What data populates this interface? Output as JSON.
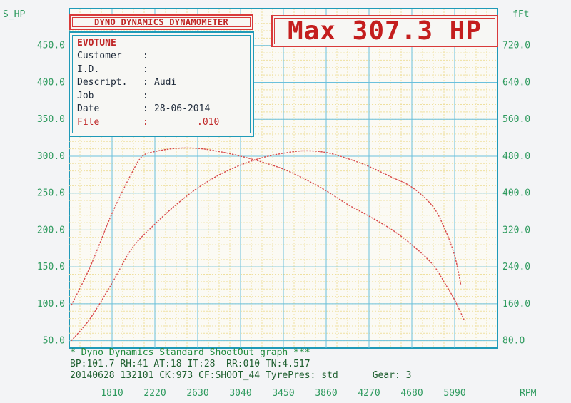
{
  "header": {
    "title": "DYNO DYNAMICS DYNAMOMETER",
    "max_label": "Max 307.3 HP"
  },
  "info": {
    "brand": "EVOTUNE",
    "rows": [
      {
        "label": "Customer",
        "sep": ":",
        "value": ""
      },
      {
        "label": "I.D.",
        "sep": ":",
        "value": ""
      },
      {
        "label": "Descript.",
        "sep": ":",
        "value": "Audi"
      },
      {
        "label": "Job",
        "sep": ":",
        "value": ""
      },
      {
        "label": "Date",
        "sep": ":",
        "value": "28-06-2014"
      }
    ],
    "file_label": "File",
    "file_sep": ":",
    "file_value": ".010"
  },
  "footer": {
    "line1": "* Dyno Dynamics Standard ShootOut graph ***",
    "line2": "BP:101.7 RH:41 AT:18 IT:28  RR:010 TN:4.517",
    "line3_left": "20140628 132101 CK:973 CF:SHOOT_44 TyrePres: std",
    "line3_right": "Gear: 3"
  },
  "chart_data": {
    "type": "line",
    "left_axis_title": "S_HP",
    "right_axis_title": "fFt",
    "x_unit_label": "RPM",
    "x_ticks": [
      "1810",
      "2220",
      "2630",
      "3040",
      "3450",
      "3860",
      "4270",
      "4680",
      "5090"
    ],
    "y_left_ticks": [
      "50.0",
      "100.0",
      "150.0",
      "200.0",
      "250.0",
      "300.0",
      "350.0",
      "400.0",
      "450.0"
    ],
    "y_right_ticks": [
      "80.0",
      "160.0",
      "240.0",
      "320.0",
      "400.0",
      "480.0",
      "560.0",
      "640.0",
      "720.0"
    ],
    "xlim": [
      1400,
      5500
    ],
    "ylim_left": [
      40,
      500
    ],
    "ylim_right": [
      64,
      800
    ],
    "grid": true,
    "series": [
      {
        "axis": "left",
        "color": "#d84a4a",
        "points": [
          [
            1420,
            50
          ],
          [
            1600,
            80
          ],
          [
            1810,
            128
          ],
          [
            2000,
            175
          ],
          [
            2220,
            208
          ],
          [
            2430,
            235
          ],
          [
            2630,
            257
          ],
          [
            2840,
            275
          ],
          [
            3040,
            288
          ],
          [
            3250,
            298
          ],
          [
            3450,
            304
          ],
          [
            3650,
            307.3
          ],
          [
            3860,
            305
          ],
          [
            4060,
            297
          ],
          [
            4270,
            286
          ],
          [
            4480,
            272
          ],
          [
            4680,
            258
          ],
          [
            4880,
            232
          ],
          [
            5000,
            200
          ],
          [
            5090,
            165
          ],
          [
            5150,
            125
          ]
        ]
      },
      {
        "axis": "right",
        "color": "#d84a4a",
        "points": [
          [
            1420,
            157
          ],
          [
            1600,
            240
          ],
          [
            1810,
            356
          ],
          [
            2000,
            444
          ],
          [
            2100,
            480
          ],
          [
            2220,
            490
          ],
          [
            2420,
            497
          ],
          [
            2630,
            497
          ],
          [
            2840,
            490
          ],
          [
            3040,
            480
          ],
          [
            3250,
            467
          ],
          [
            3450,
            452
          ],
          [
            3650,
            431
          ],
          [
            3860,
            405
          ],
          [
            4060,
            376
          ],
          [
            4270,
            350
          ],
          [
            4480,
            322
          ],
          [
            4680,
            288
          ],
          [
            4880,
            245
          ],
          [
            5000,
            203
          ],
          [
            5090,
            168
          ],
          [
            5180,
            125
          ]
        ]
      }
    ]
  }
}
